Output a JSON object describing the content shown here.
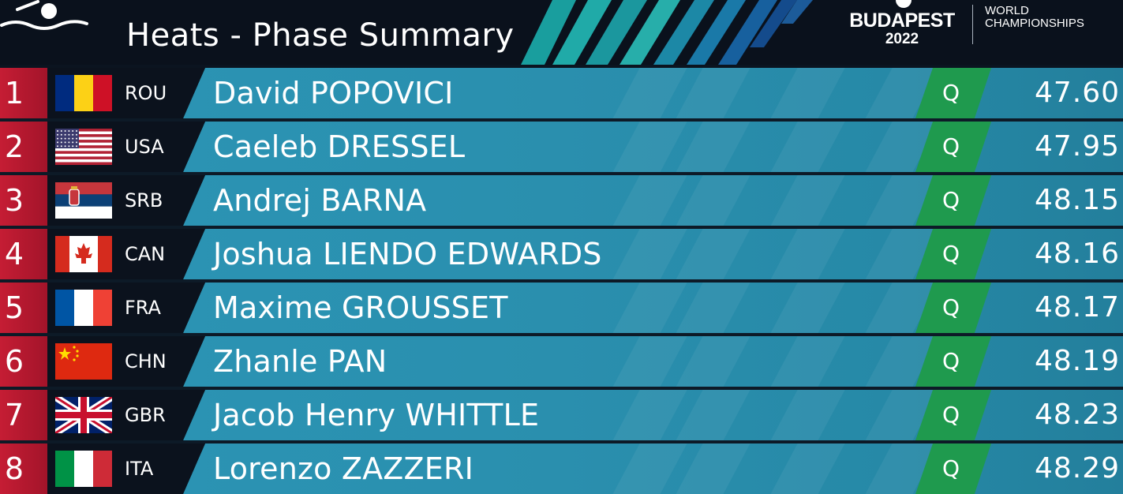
{
  "header": {
    "title": "Heats - Phase Summary",
    "logo": {
      "city": "BUDAPEST",
      "year": "2022",
      "line1": "WORLD",
      "line2": "CHAMPIONSHIPS"
    }
  },
  "colors": {
    "rank_red": "#c51d34",
    "header_bg": "#0a111c",
    "bar_teal": "#2a8fae",
    "qualified_green": "#1f9a4e"
  },
  "rows": [
    {
      "rank": "1",
      "code": "ROU",
      "flag_icon": "romania-flag-icon",
      "name": "David POPOVICI",
      "status": "Q",
      "time": "47.60"
    },
    {
      "rank": "2",
      "code": "USA",
      "flag_icon": "usa-flag-icon",
      "name": "Caeleb DRESSEL",
      "status": "Q",
      "time": "47.95"
    },
    {
      "rank": "3",
      "code": "SRB",
      "flag_icon": "serbia-flag-icon",
      "name": "Andrej BARNA",
      "status": "Q",
      "time": "48.15"
    },
    {
      "rank": "4",
      "code": "CAN",
      "flag_icon": "canada-flag-icon",
      "name": "Joshua LIENDO EDWARDS",
      "status": "Q",
      "time": "48.16"
    },
    {
      "rank": "5",
      "code": "FRA",
      "flag_icon": "france-flag-icon",
      "name": "Maxime GROUSSET",
      "status": "Q",
      "time": "48.17"
    },
    {
      "rank": "6",
      "code": "CHN",
      "flag_icon": "china-flag-icon",
      "name": "Zhanle PAN",
      "status": "Q",
      "time": "48.19"
    },
    {
      "rank": "7",
      "code": "GBR",
      "flag_icon": "uk-flag-icon",
      "name": "Jacob Henry WHITTLE",
      "status": "Q",
      "time": "48.23"
    },
    {
      "rank": "8",
      "code": "ITA",
      "flag_icon": "italy-flag-icon",
      "name": "Lorenzo ZAZZERI",
      "status": "Q",
      "time": "48.29"
    }
  ]
}
